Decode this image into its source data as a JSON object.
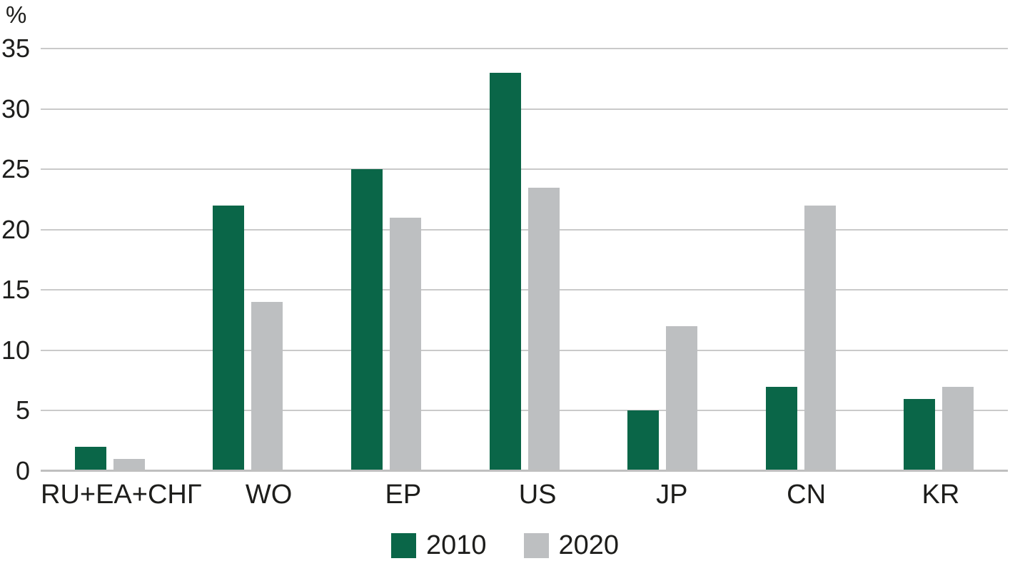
{
  "chart_data": {
    "type": "bar",
    "ylabel": "%",
    "xlabel": "",
    "ylim": [
      0,
      35
    ],
    "yticks": [
      0,
      5,
      10,
      15,
      20,
      25,
      30,
      35
    ],
    "grid": true,
    "legend_position": "bottom",
    "categories": [
      "RU+EA+СНГ",
      "WO",
      "EP",
      "US",
      "JP",
      "CN",
      "KR"
    ],
    "series": [
      {
        "name": "2010",
        "color": "#0a6648",
        "values": [
          2,
          22,
          25,
          33,
          5,
          7,
          6
        ]
      },
      {
        "name": "2020",
        "color": "#bdbfc1",
        "values": [
          1,
          14,
          21,
          23.5,
          12,
          22,
          7
        ]
      }
    ]
  },
  "colors": {
    "gridline": "#cacaca",
    "axis_line": "#bfbfbf",
    "text": "#1d1d1b",
    "background": "#ffffff"
  }
}
